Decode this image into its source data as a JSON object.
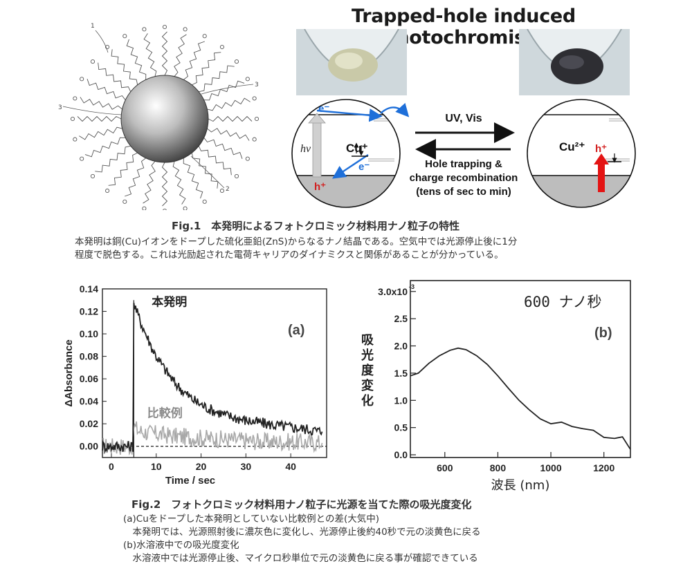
{
  "fig1": {
    "illustration_labels": [
      "1",
      "3",
      "3",
      "2"
    ],
    "panel_title": "Trapped-hole induced photochromism",
    "labels": {
      "e_top": "e⁻",
      "hv": "hv",
      "cu_plus": "Cu⁺",
      "e_bottom": "e⁻",
      "h_plus_left": "h⁺",
      "uv_vis": "UV, Vis",
      "hole_trapping_1": "Hole trapping &",
      "hole_trapping_2": "charge recombination",
      "hole_trapping_3": "(tens of sec to min)",
      "cu2_plus": "Cu²⁺",
      "h_plus_right": "h⁺"
    },
    "title": "Fig.1　本発明によるフォトクロミック材料用ナノ粒子の特性",
    "caption_1": "本発明は銅(Cu)イオンをドープした硫化亜鉛(ZnS)からなるナノ結晶である。空気中では光源停止後に1分",
    "caption_2": "程度で脱色する。これは光励起された電荷キャリアのダイナミクスと関係があることが分かっている。"
  },
  "fig2": {
    "title": "Fig.2　フォトクロミック材料用ナノ粒子に光源を当てた際の吸光度変化",
    "cap_1": "(a)Cuをドープした本発明としていない比較例との差(大気中)",
    "cap_2": "　本発明では、光源照射後に濃灰色に変化し、光源停止後約40秒で元の淡黄色に戻る",
    "cap_3": "(b)水溶液中での吸光度変化",
    "cap_4": "　水溶液中では光源停止後、マイクロ秒単位で元の淡黄色に戻る事が確認できている"
  },
  "chart_data": [
    {
      "type": "line",
      "panel_label": "(a)",
      "xlabel": "Time  / sec",
      "ylabel": "ΔAbsorbance",
      "xlim": [
        -2,
        48
      ],
      "ylim": [
        -0.01,
        0.14
      ],
      "xticks": [
        "0",
        "10",
        "20",
        "30",
        "40"
      ],
      "yticks": [
        "0.00",
        "0.02",
        "0.04",
        "0.06",
        "0.08",
        "0.10",
        "0.12",
        "0.14"
      ],
      "series": [
        {
          "name": "本発明",
          "color": "#222222",
          "x": [
            -2,
            4.8,
            5.0,
            5.2,
            6,
            7,
            8,
            9,
            10,
            12,
            14,
            16,
            18,
            20,
            22,
            24,
            26,
            28,
            30,
            33,
            36,
            40,
            44,
            47
          ],
          "y": [
            0.0,
            0.0,
            0.128,
            0.125,
            0.116,
            0.106,
            0.097,
            0.088,
            0.08,
            0.068,
            0.057,
            0.049,
            0.042,
            0.037,
            0.033,
            0.03,
            0.027,
            0.025,
            0.023,
            0.021,
            0.019,
            0.017,
            0.015,
            0.013
          ]
        },
        {
          "name": "比較例",
          "color": "#a8a8a8",
          "x": [
            -2,
            4.8,
            5.0,
            6,
            8,
            10,
            14,
            18,
            22,
            26,
            30,
            35,
            40,
            47
          ],
          "y": [
            0.0,
            0.0,
            0.018,
            0.014,
            0.012,
            0.011,
            0.009,
            0.008,
            0.007,
            0.006,
            0.005,
            0.004,
            0.004,
            0.003
          ]
        }
      ],
      "baseline": 0.0
    },
    {
      "type": "line",
      "panel_label": "(b)",
      "annotation": "600 ナノ秒",
      "xlabel": "波長 (nm)",
      "ylabel": "吸光度変化",
      "y_exponent": "-3",
      "xlim": [
        470,
        1300
      ],
      "ylim": [
        -0.05,
        3.2
      ],
      "xticks": [
        "600",
        "800",
        "1000",
        "1200"
      ],
      "yticks": [
        "0.0",
        "0.5",
        "1.0",
        "1.5",
        "2.0",
        "2.5",
        "3.0x10"
      ],
      "series": [
        {
          "name": "",
          "color": "#222222",
          "x": [
            470,
            500,
            540,
            580,
            620,
            650,
            680,
            720,
            760,
            800,
            840,
            880,
            920,
            960,
            1000,
            1040,
            1080,
            1120,
            1160,
            1200,
            1240,
            1270,
            1300
          ],
          "y": [
            1.45,
            1.5,
            1.68,
            1.82,
            1.92,
            1.96,
            1.93,
            1.82,
            1.66,
            1.45,
            1.22,
            1.0,
            0.82,
            0.66,
            0.57,
            0.6,
            0.52,
            0.48,
            0.45,
            0.32,
            0.3,
            0.33,
            0.1
          ]
        }
      ]
    }
  ]
}
